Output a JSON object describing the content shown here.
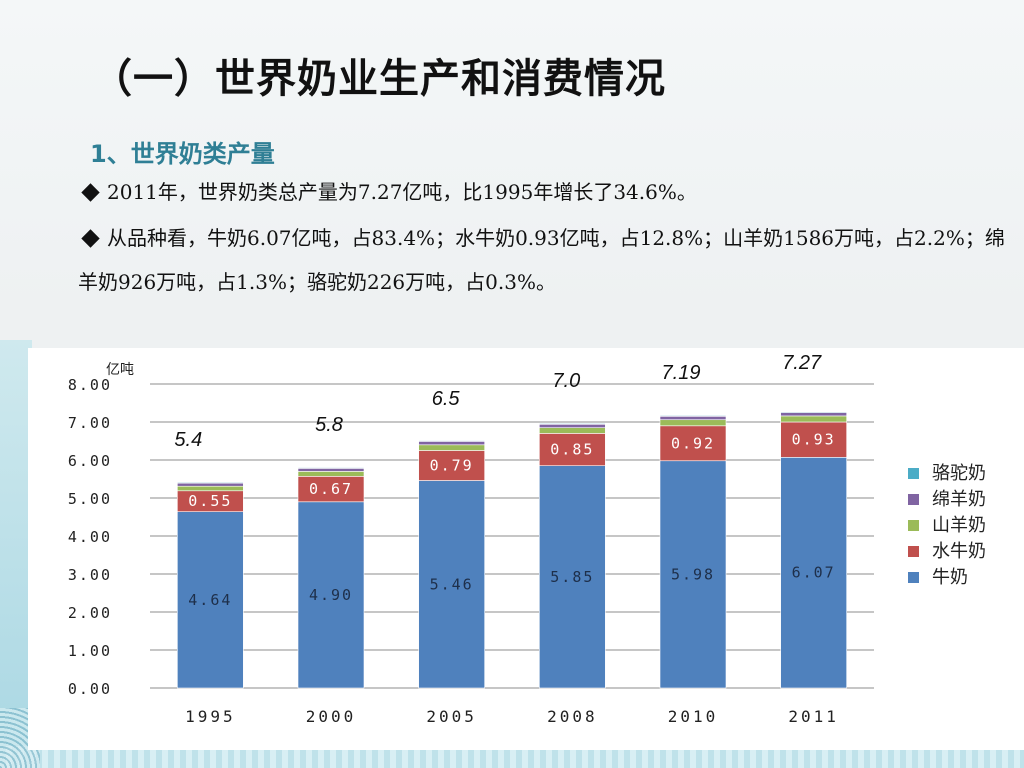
{
  "slide": {
    "title": "（一）世界奶业生产和消费情况",
    "subtitle": "1、世界奶类产量",
    "bullets": [
      "2011年，世界奶类总产量为7.27亿吨，比1995年增长了34.6%。",
      "从品种看，牛奶6.07亿吨，占83.4%；水牛奶0.93亿吨，占12.8%；山羊奶1586万吨，占2.2%；绵羊奶926万吨，占1.3%；骆驼奶226万吨，占0.3%。"
    ]
  },
  "chart_data": {
    "type": "bar",
    "stacked": true,
    "unit_label": "亿吨",
    "categories": [
      "1995",
      "2000",
      "2005",
      "2008",
      "2010",
      "2011"
    ],
    "ylim": [
      0,
      8
    ],
    "yticks": [
      "0.00",
      "1.00",
      "2.00",
      "3.00",
      "4.00",
      "5.00",
      "6.00",
      "7.00",
      "8.00"
    ],
    "series": [
      {
        "name": "牛奶",
        "color": "#4f81bd",
        "values": [
          4.64,
          4.9,
          5.46,
          5.85,
          5.98,
          6.07
        ],
        "labels": [
          "4.64",
          "4.90",
          "5.46",
          "5.85",
          "5.98",
          "6.07"
        ]
      },
      {
        "name": "水牛奶",
        "color": "#c0504d",
        "values": [
          0.55,
          0.67,
          0.79,
          0.85,
          0.92,
          0.93
        ],
        "labels": [
          "0.55",
          "0.67",
          "0.79",
          "0.85",
          "0.92",
          "0.93"
        ]
      },
      {
        "name": "山羊奶",
        "color": "#9bbb59",
        "values": [
          0.12,
          0.13,
          0.15,
          0.15,
          0.16,
          0.16
        ]
      },
      {
        "name": "绵羊奶",
        "color": "#8064a2",
        "values": [
          0.08,
          0.08,
          0.09,
          0.09,
          0.09,
          0.09
        ]
      },
      {
        "name": "骆驼奶",
        "color": "#4bacc6",
        "values": [
          0.02,
          0.02,
          0.02,
          0.02,
          0.02,
          0.02
        ]
      }
    ],
    "totals": [
      "5.4",
      "5.8",
      "6.5",
      "7.0",
      "7.19",
      "7.27"
    ],
    "legend_position": "right",
    "grid": true
  }
}
